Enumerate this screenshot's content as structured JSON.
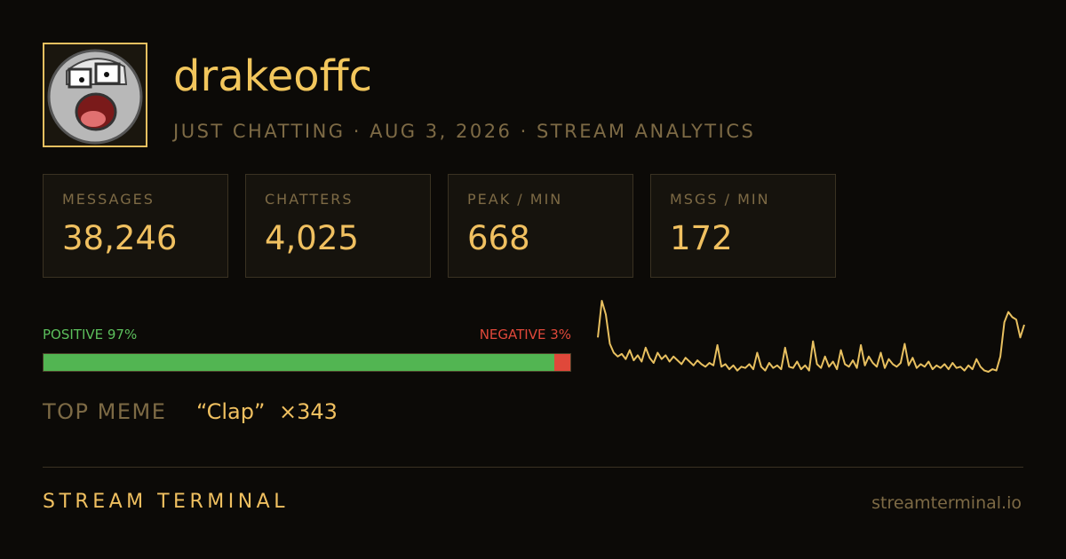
{
  "profile": {
    "name": "drakeoffc",
    "subtitle": "JUST CHATTING · AUG 3, 2026 · STREAM ANALYTICS"
  },
  "stats": [
    {
      "label": "MESSAGES",
      "value": "38,246"
    },
    {
      "label": "CHATTERS",
      "value": "4,025"
    },
    {
      "label": "PEAK / MIN",
      "value": "668"
    },
    {
      "label": "MSGS / MIN",
      "value": "172"
    }
  ],
  "sentiment": {
    "positive_label": "POSITIVE 97%",
    "positive": 97,
    "negative_label": "NEGATIVE 3%",
    "negative": 3
  },
  "top_meme": {
    "label": "TOP MEME",
    "meme": "“Clap”",
    "count": "×343"
  },
  "chart_data": {
    "type": "line",
    "color": "#e8c060",
    "values": [
      380,
      668,
      560,
      330,
      260,
      230,
      250,
      210,
      280,
      200,
      240,
      190,
      300,
      220,
      180,
      260,
      210,
      240,
      190,
      230,
      200,
      170,
      220,
      190,
      160,
      200,
      170,
      150,
      180,
      160,
      320,
      150,
      170,
      130,
      160,
      120,
      150,
      140,
      170,
      130,
      260,
      150,
      120,
      180,
      140,
      160,
      130,
      300,
      150,
      140,
      190,
      130,
      160,
      120,
      350,
      170,
      140,
      230,
      150,
      190,
      130,
      280,
      170,
      150,
      200,
      140,
      320,
      160,
      230,
      180,
      150,
      260,
      140,
      210,
      170,
      150,
      180,
      330,
      160,
      220,
      140,
      170,
      150,
      190,
      130,
      160,
      140,
      170,
      130,
      180,
      140,
      150,
      120,
      160,
      130,
      210,
      150,
      120,
      110,
      130,
      120,
      230,
      500,
      580,
      540,
      520,
      380,
      480
    ]
  },
  "footer": {
    "brand": "STREAM TERMINAL",
    "url": "streamterminal.io"
  }
}
